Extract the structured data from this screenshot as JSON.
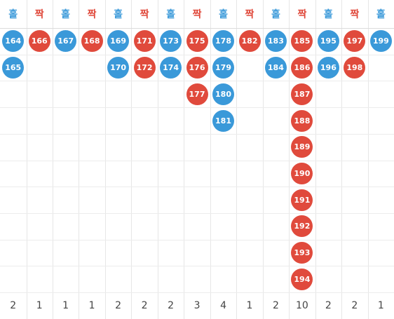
{
  "colors": {
    "odd": "#3a99d9",
    "even": "#e04a3c",
    "odd_text": "#3a99d9",
    "even_text": "#e04a3c"
  },
  "columns": [
    {
      "label": "홀",
      "type": "odd",
      "balls": [
        "164",
        "165"
      ],
      "count": "2"
    },
    {
      "label": "짝",
      "type": "even",
      "balls": [
        "166"
      ],
      "count": "1"
    },
    {
      "label": "홀",
      "type": "odd",
      "balls": [
        "167"
      ],
      "count": "1"
    },
    {
      "label": "짝",
      "type": "even",
      "balls": [
        "168"
      ],
      "count": "1"
    },
    {
      "label": "홀",
      "type": "odd",
      "balls": [
        "169",
        "170"
      ],
      "count": "2"
    },
    {
      "label": "짝",
      "type": "even",
      "balls": [
        "171",
        "172"
      ],
      "count": "2"
    },
    {
      "label": "홀",
      "type": "odd",
      "balls": [
        "173",
        "174"
      ],
      "count": "2"
    },
    {
      "label": "짝",
      "type": "even",
      "balls": [
        "175",
        "176",
        "177"
      ],
      "count": "3"
    },
    {
      "label": "홀",
      "type": "odd",
      "balls": [
        "178",
        "179",
        "180",
        "181"
      ],
      "count": "4"
    },
    {
      "label": "짝",
      "type": "even",
      "balls": [
        "182"
      ],
      "count": "1"
    },
    {
      "label": "홀",
      "type": "odd",
      "balls": [
        "183",
        "184"
      ],
      "count": "2"
    },
    {
      "label": "짝",
      "type": "even",
      "balls": [
        "185",
        "186",
        "187",
        "188",
        "189",
        "190",
        "191",
        "192",
        "193",
        "194"
      ],
      "count": "10"
    },
    {
      "label": "홀",
      "type": "odd",
      "balls": [
        "195",
        "196"
      ],
      "count": "2"
    },
    {
      "label": "짝",
      "type": "even",
      "balls": [
        "197",
        "198"
      ],
      "count": "2"
    },
    {
      "label": "홀",
      "type": "odd",
      "balls": [
        "199"
      ],
      "count": "1"
    }
  ]
}
